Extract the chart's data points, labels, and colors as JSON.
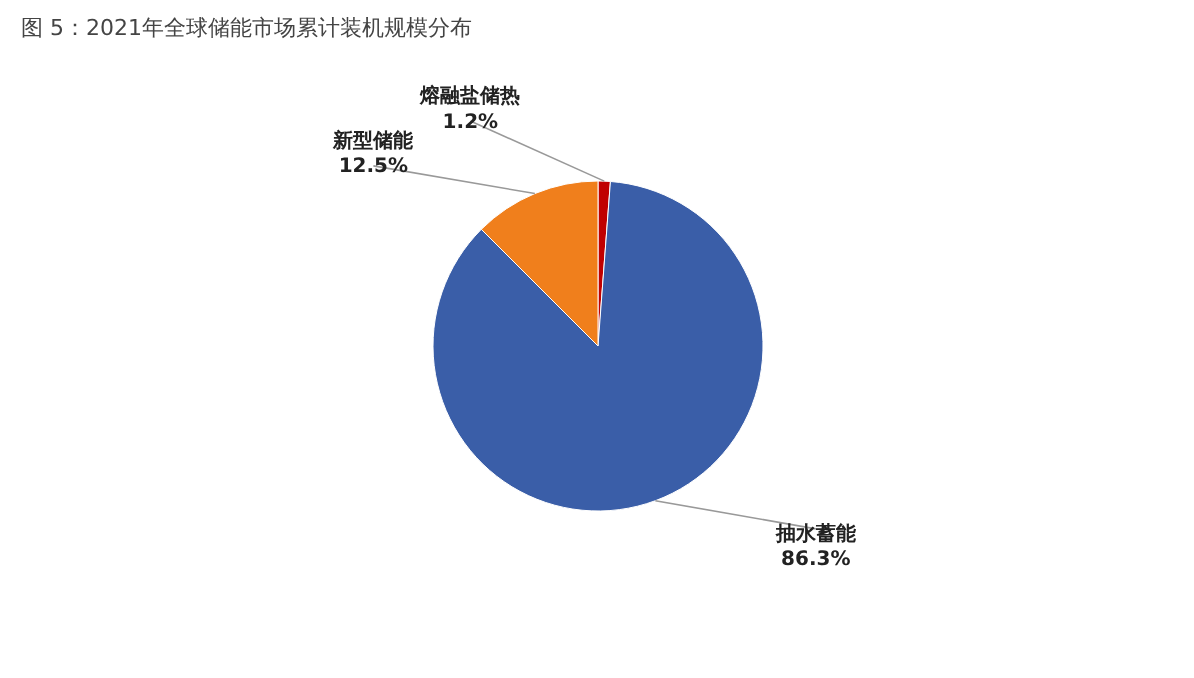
{
  "chart_data": {
    "type": "pie",
    "title": "图 5：2021年全球储能市场累计装机规模分布",
    "categories": [
      "熔融盐储热",
      "抽水蓄能",
      "新型储能"
    ],
    "values": [
      1.2,
      86.3,
      12.5
    ],
    "colors": [
      "#c00000",
      "#3a5ea8",
      "#f07f1c"
    ],
    "value_labels": [
      "1.2%",
      "86.3%",
      "12.5%"
    ]
  }
}
